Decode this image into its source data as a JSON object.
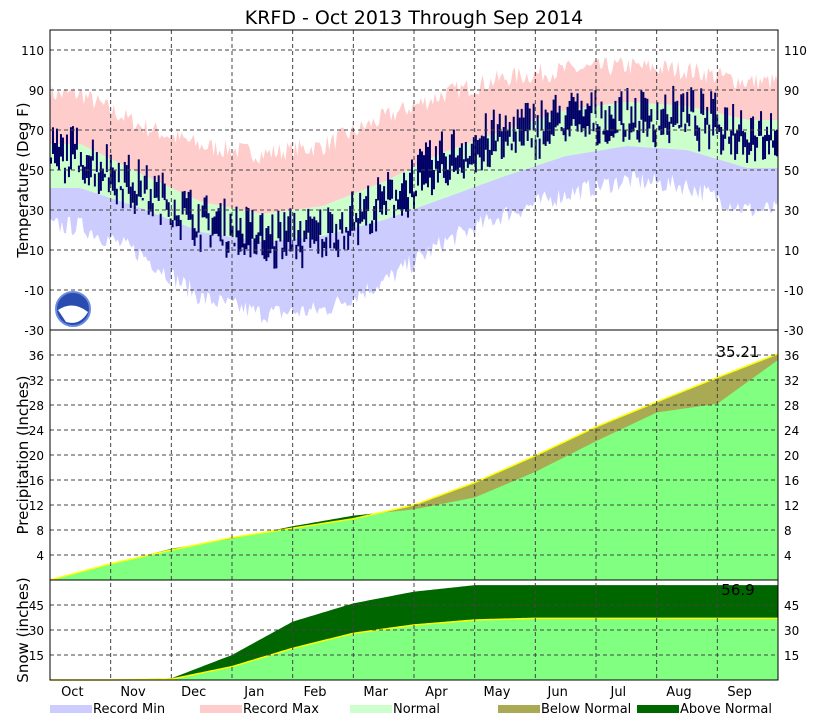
{
  "chart_data": {
    "type": "area",
    "title": "KRFD - Oct 2013 Through Sep 2014",
    "months": [
      "Oct",
      "Nov",
      "Dec",
      "Jan",
      "Feb",
      "Mar",
      "Apr",
      "May",
      "Jun",
      "Jul",
      "Aug",
      "Sep"
    ],
    "panels": [
      {
        "name": "temperature",
        "ylabel": "Temperature (Deg F)",
        "ylim": [
          -30,
          120
        ],
        "ticks": [
          -30,
          -10,
          10,
          30,
          50,
          70,
          90,
          110
        ],
        "record_max": [
          88,
          72,
          62,
          58,
          62,
          76,
          88,
          96,
          100,
          102,
          100,
          94
        ],
        "normal_high": [
          63,
          48,
          34,
          28,
          32,
          44,
          59,
          70,
          80,
          84,
          82,
          75
        ],
        "normal_low": [
          41,
          31,
          19,
          14,
          17,
          25,
          36,
          47,
          57,
          62,
          60,
          51
        ],
        "record_min": [
          22,
          8,
          -14,
          -22,
          -20,
          -6,
          14,
          28,
          38,
          45,
          42,
          30
        ],
        "actual_high": [
          62,
          44,
          28,
          20,
          22,
          38,
          60,
          72,
          80,
          80,
          82,
          74
        ],
        "actual_low": [
          42,
          27,
          12,
          -2,
          2,
          18,
          36,
          50,
          60,
          60,
          62,
          52
        ]
      },
      {
        "name": "precipitation",
        "ylabel": "Precipitation (Inches)",
        "ylim": [
          0,
          40
        ],
        "ticks": [
          4,
          8,
          12,
          16,
          20,
          24,
          28,
          32,
          36
        ],
        "annotation": "35.21",
        "actual_cum": [
          0,
          2.5,
          5,
          6.6,
          8.6,
          10.3,
          11.3,
          13.2,
          17.3,
          22.2,
          26.8,
          28.2,
          35.21
        ],
        "normal_cum": [
          0,
          2.6,
          4.8,
          6.8,
          8.3,
          9.8,
          12.0,
          15.6,
          19.9,
          24.5,
          28.5,
          32.4,
          36.2
        ]
      },
      {
        "name": "snow",
        "ylabel": "Snow (inches)",
        "ylim": [
          0,
          60
        ],
        "ticks": [
          15,
          30,
          45
        ],
        "annotation": "56.9",
        "actual_cum": [
          0,
          0,
          1,
          15,
          35,
          46,
          53,
          56.9,
          56.9,
          56.9,
          56.9,
          56.9,
          56.9
        ],
        "normal_cum": [
          0,
          0,
          0.5,
          8,
          19,
          28,
          33,
          36,
          37,
          37,
          37,
          37,
          37
        ]
      }
    ],
    "legend": [
      {
        "label": "Record Min",
        "color": "#ccccff"
      },
      {
        "label": "Record Max",
        "color": "#ffcccc"
      },
      {
        "label": "Normal",
        "color": "#ccffcc"
      },
      {
        "label": "Below Normal",
        "color": "#aaaa55"
      },
      {
        "label": "Above Normal",
        "color": "#006600"
      }
    ],
    "colors": {
      "observed_temp": "#000066",
      "precip_normal_fill": "#80ff80",
      "normal_line": "#ffff00"
    }
  }
}
